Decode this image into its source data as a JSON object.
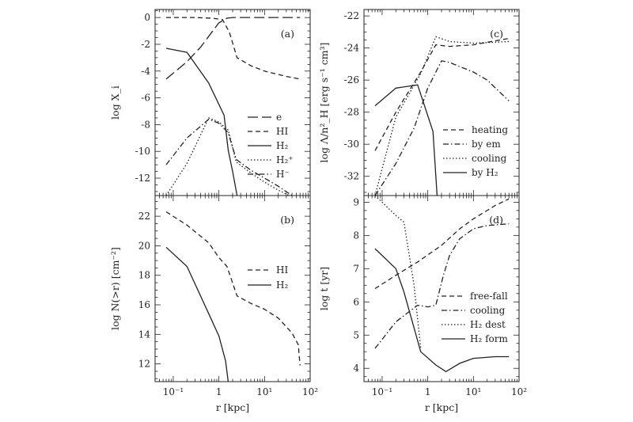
{
  "chart_data": [
    {
      "type": "line",
      "panel_label": "(a)",
      "xlabel": "",
      "ylabel": "log X_i",
      "xscale": "log",
      "xlim": [
        0.04,
        100
      ],
      "ylim": [
        -13.3,
        0.6
      ],
      "ytick_labels": [
        "0",
        "-2",
        "-4",
        "-6",
        "-8",
        "-10",
        "-12"
      ],
      "yticks": [
        0,
        -2,
        -4,
        -6,
        -8,
        -10,
        -12
      ],
      "legend_position": "lower-right",
      "series": [
        {
          "name": "e",
          "style": "longdash",
          "x": [
            0.07,
            0.2,
            0.4,
            0.7,
            1.0,
            1.5,
            2.0,
            3,
            10,
            60
          ],
          "y": [
            -4.6,
            -3.3,
            -2.2,
            -1.1,
            -0.4,
            -0.05,
            0,
            0,
            0,
            0
          ]
        },
        {
          "name": "HI",
          "style": "dash",
          "x": [
            0.07,
            0.3,
            0.7,
            1.2,
            1.7,
            2.5,
            5,
            10,
            30,
            60
          ],
          "y": [
            0,
            0,
            -0.05,
            -0.15,
            -1.1,
            -3.0,
            -3.6,
            -4.0,
            -4.4,
            -4.6
          ]
        },
        {
          "name": "H₂",
          "style": "solid",
          "x": [
            0.07,
            0.2,
            0.6,
            1.3,
            1.6,
            2.0,
            2.5
          ],
          "y": [
            -2.3,
            -2.6,
            -4.9,
            -7.3,
            -9.9,
            -11.5,
            -13.3
          ]
        },
        {
          "name": "H₂⁺",
          "style": "dot",
          "x": [
            0.07,
            0.2,
            0.6,
            1.0,
            1.6,
            2.4,
            5,
            10,
            20,
            35
          ],
          "y": [
            -13.3,
            -10.9,
            -7.5,
            -7.8,
            -8.4,
            -10.8,
            -11.6,
            -12.3,
            -12.9,
            -13.3
          ]
        },
        {
          "name": "H⁻",
          "style": "dashdot",
          "x": [
            0.07,
            0.2,
            0.6,
            1.0,
            1.6,
            2.4,
            5,
            10,
            20,
            40
          ],
          "y": [
            -11.0,
            -9.0,
            -7.6,
            -7.9,
            -8.6,
            -10.6,
            -11.4,
            -12.0,
            -12.6,
            -13.3
          ]
        }
      ]
    },
    {
      "type": "line",
      "panel_label": "(b)",
      "xlabel": "r [kpc]",
      "ylabel": "log N(>r) [cm⁻²]",
      "xscale": "log",
      "xlim": [
        0.04,
        100
      ],
      "ylim": [
        10.8,
        23.4
      ],
      "xtick_labels": [
        "10⁻¹",
        "1",
        "10¹",
        "10²"
      ],
      "xticks": [
        0.1,
        1,
        10,
        100
      ],
      "ytick_labels": [
        "22",
        "20",
        "18",
        "16",
        "14",
        "12"
      ],
      "yticks": [
        22,
        20,
        18,
        16,
        14,
        12
      ],
      "legend_position": "upper-right",
      "series": [
        {
          "name": "HI",
          "style": "dash",
          "x": [
            0.07,
            0.2,
            0.6,
            1.0,
            1.5,
            2.5,
            5,
            10,
            20,
            40,
            55,
            60
          ],
          "y": [
            22.3,
            21.4,
            20.2,
            19.2,
            18.6,
            16.6,
            16.1,
            15.7,
            15.1,
            14.1,
            13.3,
            11.9
          ]
        },
        {
          "name": "H₂",
          "style": "solid",
          "x": [
            0.07,
            0.2,
            0.6,
            1.0,
            1.4,
            1.6
          ],
          "y": [
            19.9,
            18.6,
            15.4,
            13.9,
            12.2,
            10.8
          ]
        }
      ]
    },
    {
      "type": "line",
      "panel_label": "(c)",
      "xlabel": "",
      "ylabel": "log Λ/n²_H [erg s⁻¹ cm³]",
      "xscale": "log",
      "xlim": [
        0.04,
        100
      ],
      "ylim": [
        -33.2,
        -21.6
      ],
      "ytick_labels": [
        "-22",
        "-24",
        "-26",
        "-28",
        "-30",
        "-32"
      ],
      "yticks": [
        -22,
        -24,
        -26,
        -28,
        -30,
        -32
      ],
      "legend_position": "lower-right",
      "series": [
        {
          "name": "heating",
          "style": "dash",
          "x": [
            0.07,
            0.2,
            0.7,
            1.5,
            3,
            10,
            60
          ],
          "y": [
            -30.4,
            -28.0,
            -25.5,
            -23.8,
            -23.9,
            -23.8,
            -23.4
          ]
        },
        {
          "name": "by em",
          "style": "dashdot",
          "x": [
            0.07,
            0.2,
            0.5,
            1.0,
            2.0,
            3,
            10,
            20,
            60
          ],
          "y": [
            -33.2,
            -31.2,
            -29.0,
            -26.5,
            -24.8,
            -24.9,
            -25.5,
            -26.0,
            -27.3
          ]
        },
        {
          "name": "cooling",
          "style": "dot",
          "x": [
            0.07,
            0.2,
            0.7,
            1.5,
            3,
            10,
            60
          ],
          "y": [
            -33.2,
            -28.3,
            -25.6,
            -23.3,
            -23.6,
            -23.7,
            -23.6
          ]
        },
        {
          "name": "by H₂",
          "style": "solid",
          "x": [
            0.07,
            0.2,
            0.6,
            1.3,
            1.6
          ],
          "y": [
            -27.6,
            -26.5,
            -26.3,
            -29.2,
            -33.2
          ]
        }
      ]
    },
    {
      "type": "line",
      "panel_label": "(d)",
      "xlabel": "r [kpc]",
      "ylabel": "log t [yr]",
      "xscale": "log",
      "xlim": [
        0.04,
        100
      ],
      "ylim": [
        3.6,
        9.2
      ],
      "xtick_labels": [
        "10⁻¹",
        "1",
        "10¹",
        "10²"
      ],
      "xticks": [
        0.1,
        1,
        10,
        100
      ],
      "ytick_labels": [
        "9",
        "8",
        "7",
        "6",
        "5",
        "4"
      ],
      "yticks": [
        9,
        8,
        7,
        6,
        5,
        4
      ],
      "legend_position": "lower-right",
      "series": [
        {
          "name": "free-fall",
          "style": "dash",
          "x": [
            0.07,
            0.2,
            0.6,
            2,
            5,
            10,
            30,
            60
          ],
          "y": [
            6.4,
            6.8,
            7.2,
            7.7,
            8.2,
            8.5,
            8.9,
            9.1
          ]
        },
        {
          "name": "cooling",
          "style": "dashdot",
          "x": [
            0.07,
            0.2,
            0.6,
            1.0,
            1.5,
            2.2,
            3,
            5,
            10,
            20,
            60
          ],
          "y": [
            4.6,
            5.4,
            5.9,
            5.85,
            5.9,
            6.8,
            7.4,
            7.9,
            8.2,
            8.3,
            8.35
          ]
        },
        {
          "name": "H₂ dest",
          "style": "dot",
          "x": [
            0.07,
            0.1,
            0.2,
            0.3,
            0.5,
            0.7
          ],
          "y": [
            9.2,
            9.0,
            8.6,
            8.4,
            6.5,
            4.6
          ]
        },
        {
          "name": "H₂ form",
          "style": "solid",
          "x": [
            0.07,
            0.2,
            0.3,
            0.7,
            1.5,
            2.5,
            5,
            10,
            30,
            60
          ],
          "y": [
            7.6,
            7.0,
            6.3,
            4.5,
            4.1,
            3.9,
            4.15,
            4.3,
            4.35,
            4.35
          ]
        }
      ]
    }
  ]
}
